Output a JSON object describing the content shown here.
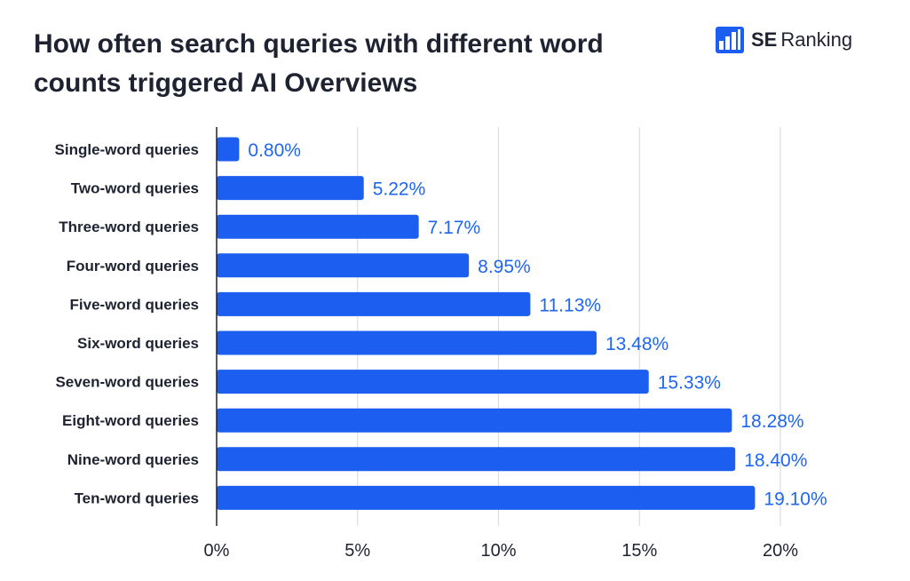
{
  "title": "How often search queries with different word counts triggered AI Overviews",
  "brand": {
    "name_bold": "SE",
    "name_regular": "Ranking",
    "icon": "bar-chart-logo-icon"
  },
  "colors": {
    "bar": "#1b5ef0",
    "value_label": "#1f66f0",
    "text": "#1f2230",
    "grid": "#dcdde3",
    "axis": "#1f2230"
  },
  "chart_data": {
    "type": "bar",
    "orientation": "horizontal",
    "categories": [
      "Single-word queries",
      "Two-word queries",
      "Three-word queries",
      "Four-word queries",
      "Five-word queries",
      "Six-word queries",
      "Seven-word queries",
      "Eight-word queries",
      "Nine-word queries",
      "Ten-word queries"
    ],
    "values": [
      0.8,
      5.22,
      7.17,
      8.95,
      11.13,
      13.48,
      15.33,
      18.28,
      18.4,
      19.1
    ],
    "value_labels": [
      "0.80%",
      "5.22%",
      "7.17%",
      "8.95%",
      "11.13%",
      "13.48%",
      "15.33%",
      "18.28%",
      "18.40%",
      "19.10%"
    ],
    "xlim": [
      0,
      20
    ],
    "xticks": [
      0,
      5,
      10,
      15,
      20
    ],
    "xtick_labels": [
      "0%",
      "5%",
      "10%",
      "15%",
      "20%"
    ],
    "grid": "vertical",
    "legend": "none",
    "xlabel": "",
    "ylabel": ""
  }
}
